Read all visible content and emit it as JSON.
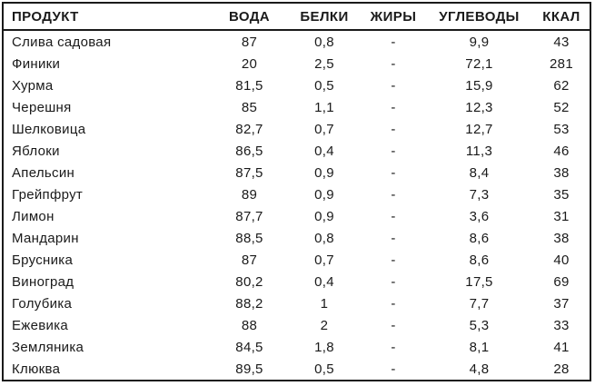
{
  "colors": {
    "border": "#1a1a1a",
    "text": "#1a1a1a",
    "background": "#ffffff"
  },
  "table": {
    "columns": [
      {
        "key": "product",
        "label": "ПРОДУКТ",
        "align": "left"
      },
      {
        "key": "water",
        "label": "ВОДА",
        "align": "center"
      },
      {
        "key": "protein",
        "label": "БЕЛКИ",
        "align": "center"
      },
      {
        "key": "fat",
        "label": "ЖИРЫ",
        "align": "center"
      },
      {
        "key": "carbs",
        "label": "УГЛЕВОДЫ",
        "align": "center"
      },
      {
        "key": "kcal",
        "label": "ККАЛ",
        "align": "center"
      }
    ],
    "rows": [
      {
        "product": "Слива садовая",
        "water": "87",
        "protein": "0,8",
        "fat": "-",
        "carbs": "9,9",
        "kcal": "43"
      },
      {
        "product": "Финики",
        "water": "20",
        "protein": "2,5",
        "fat": "-",
        "carbs": "72,1",
        "kcal": "281"
      },
      {
        "product": "Хурма",
        "water": "81,5",
        "protein": "0,5",
        "fat": "-",
        "carbs": "15,9",
        "kcal": "62"
      },
      {
        "product": "Черешня",
        "water": "85",
        "protein": "1,1",
        "fat": "-",
        "carbs": "12,3",
        "kcal": "52"
      },
      {
        "product": "Шелковица",
        "water": "82,7",
        "protein": "0,7",
        "fat": "-",
        "carbs": "12,7",
        "kcal": "53"
      },
      {
        "product": "Яблоки",
        "water": "86,5",
        "protein": "0,4",
        "fat": "-",
        "carbs": "11,3",
        "kcal": "46"
      },
      {
        "product": "Апельсин",
        "water": "87,5",
        "protein": "0,9",
        "fat": "-",
        "carbs": "8,4",
        "kcal": "38"
      },
      {
        "product": "Грейпфрут",
        "water": "89",
        "protein": "0,9",
        "fat": "-",
        "carbs": "7,3",
        "kcal": "35"
      },
      {
        "product": "Лимон",
        "water": "87,7",
        "protein": "0,9",
        "fat": "-",
        "carbs": "3,6",
        "kcal": "31"
      },
      {
        "product": "Мандарин",
        "water": "88,5",
        "protein": "0,8",
        "fat": "-",
        "carbs": "8,6",
        "kcal": "38"
      },
      {
        "product": "Брусника",
        "water": "87",
        "protein": "0,7",
        "fat": "-",
        "carbs": "8,6",
        "kcal": "40"
      },
      {
        "product": "Виноград",
        "water": "80,2",
        "protein": "0,4",
        "fat": "-",
        "carbs": "17,5",
        "kcal": "69"
      },
      {
        "product": "Голубика",
        "water": "88,2",
        "protein": "1",
        "fat": "-",
        "carbs": "7,7",
        "kcal": "37"
      },
      {
        "product": "Ежевика",
        "water": "88",
        "protein": "2",
        "fat": "-",
        "carbs": "5,3",
        "kcal": "33"
      },
      {
        "product": "Земляника",
        "water": "84,5",
        "protein": "1,8",
        "fat": "-",
        "carbs": "8,1",
        "kcal": "41"
      },
      {
        "product": "Клюква",
        "water": "89,5",
        "protein": "0,5",
        "fat": "-",
        "carbs": "4,8",
        "kcal": "28"
      }
    ]
  }
}
